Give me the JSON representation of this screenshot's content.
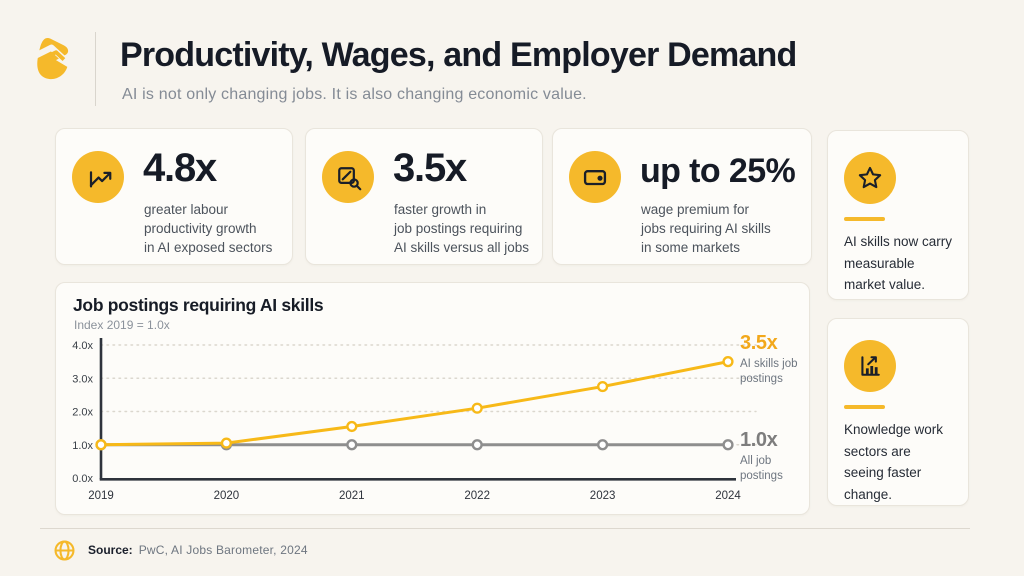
{
  "colors": {
    "background": "#F7F4EE",
    "card_background": "#FDFCF9",
    "card_border": "#E9E5DC",
    "accent_yellow": "#F5B92B",
    "text_dark": "#161B26",
    "text_gray": "#6E7680",
    "axis_dark": "#2E333C",
    "series_ai_yellow": "#F7B918",
    "series_all_gray": "#8E8E8E"
  },
  "header": {
    "title": "Productivity, Wages, and Employer Demand",
    "subtitle": "AI is not only changing jobs. It is also changing economic value."
  },
  "stats": [
    {
      "icon": "trending-up-icon",
      "value": "4.8x",
      "description": "greater labour\nproductivity growth\nin AI exposed sectors"
    },
    {
      "icon": "document-search-icon",
      "value": "3.5x",
      "description": "faster growth in\njob postings requiring\nAI skills versus all jobs"
    },
    {
      "icon": "wage-card-icon",
      "value": "up to 25%",
      "description": "wage premium for\njobs requiring AI skills\nin some markets"
    }
  ],
  "insights": [
    {
      "icon": "star-icon",
      "text": "AI skills now carry\nmeasurable\nmarket value."
    },
    {
      "icon": "bar-chart-icon",
      "text": "Knowledge work\nsectors are\nseeing faster\nchange."
    }
  ],
  "chart_data": {
    "type": "line",
    "title": "Job postings requiring AI skills",
    "subtitle": "Index 2019 = 1.0x",
    "x": [
      "2019",
      "2020",
      "2021",
      "2022",
      "2023",
      "2024"
    ],
    "ylim": [
      0,
      4
    ],
    "ytick_values": [
      0,
      1,
      2,
      3,
      4
    ],
    "yticks": [
      "0.0x",
      "1.0x",
      "2.0x",
      "3.0x",
      "4.0x"
    ],
    "grid": "horizontal-dotted",
    "legend_position": "right of line ends",
    "series": [
      {
        "name": "AI skills job postings",
        "end_label": "3.5x",
        "color": "#F7B918",
        "values": [
          1.0,
          1.05,
          1.55,
          2.1,
          2.75,
          3.5
        ]
      },
      {
        "name": "All job postings",
        "end_label": "1.0x",
        "color": "#8E8E8E",
        "values": [
          1.0,
          1.0,
          1.0,
          1.0,
          1.0,
          1.0
        ]
      }
    ]
  },
  "footer": {
    "source_label": "Source:",
    "source_text": "PwC, AI Jobs Barometer, 2024"
  }
}
